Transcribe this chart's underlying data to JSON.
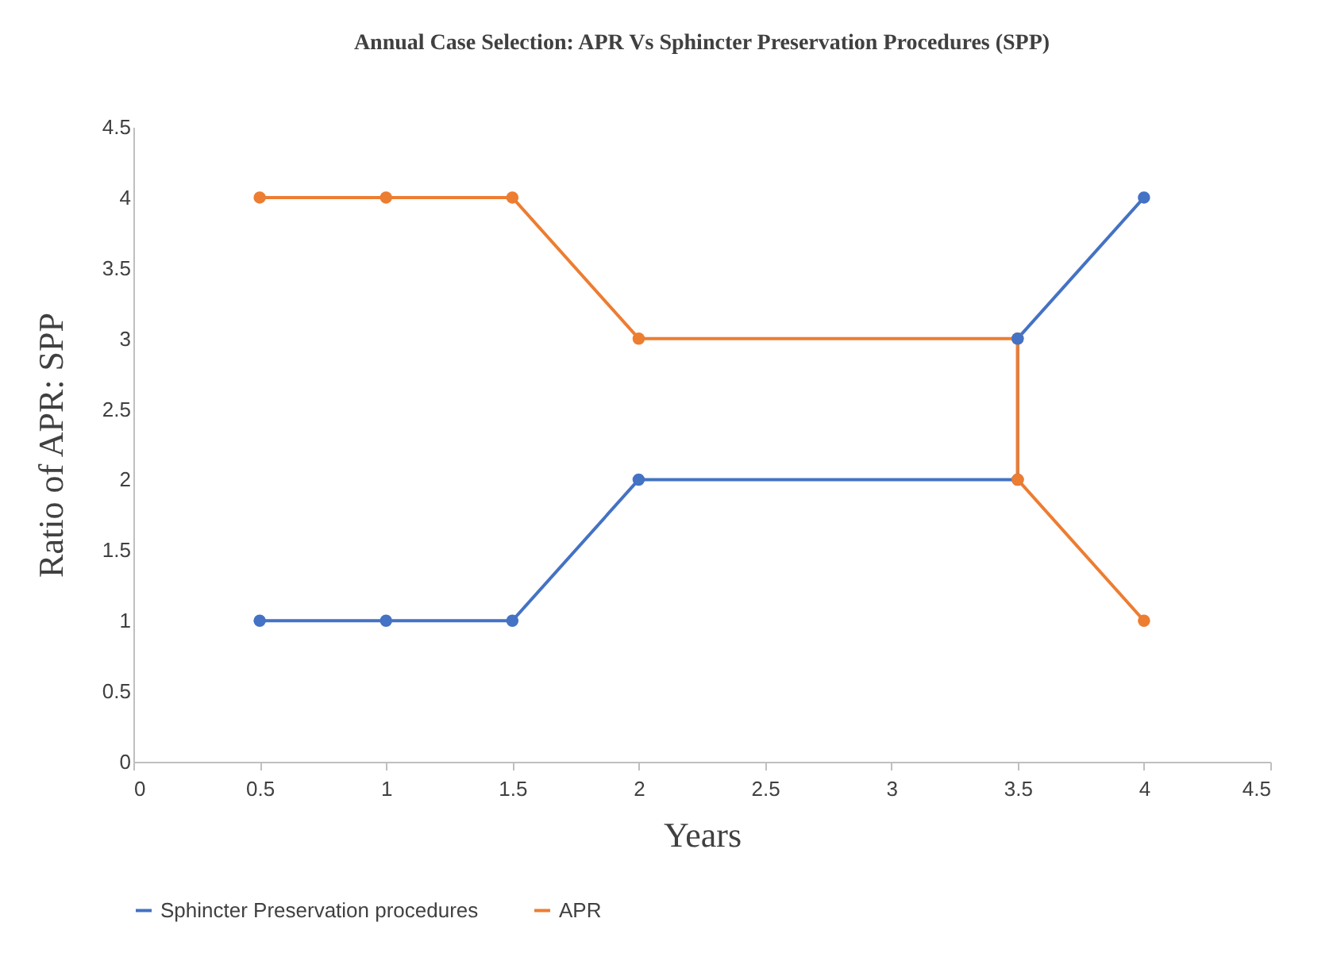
{
  "chart_data": {
    "type": "line",
    "title": "Annual Case Selection: APR Vs Sphincter Preservation Procedures (SPP)",
    "xlabel": "Years",
    "ylabel": "Ratio of APR: SPP",
    "x": [
      0.5,
      1,
      1.5,
      2,
      3.5,
      3.5,
      4
    ],
    "series": [
      {
        "name": "Sphincter Preservation procedures",
        "color": "#4472c4",
        "values": [
          1,
          1,
          1,
          2,
          2,
          3,
          4
        ]
      },
      {
        "name": "APR",
        "color": "#ed7d31",
        "values": [
          4,
          4,
          4,
          3,
          3,
          2,
          1
        ]
      }
    ],
    "xlim": [
      0,
      4.5
    ],
    "xticks": [
      0,
      0.5,
      1,
      1.5,
      2,
      2.5,
      3,
      3.5,
      4,
      4.5
    ],
    "ylim": [
      0,
      4.5
    ],
    "yticks": [
      0,
      0.5,
      1,
      1.5,
      2,
      2.5,
      3,
      3.5,
      4,
      4.5
    ],
    "grid": false,
    "legend": "bottom",
    "marker": "circle",
    "line_style": "solid"
  }
}
